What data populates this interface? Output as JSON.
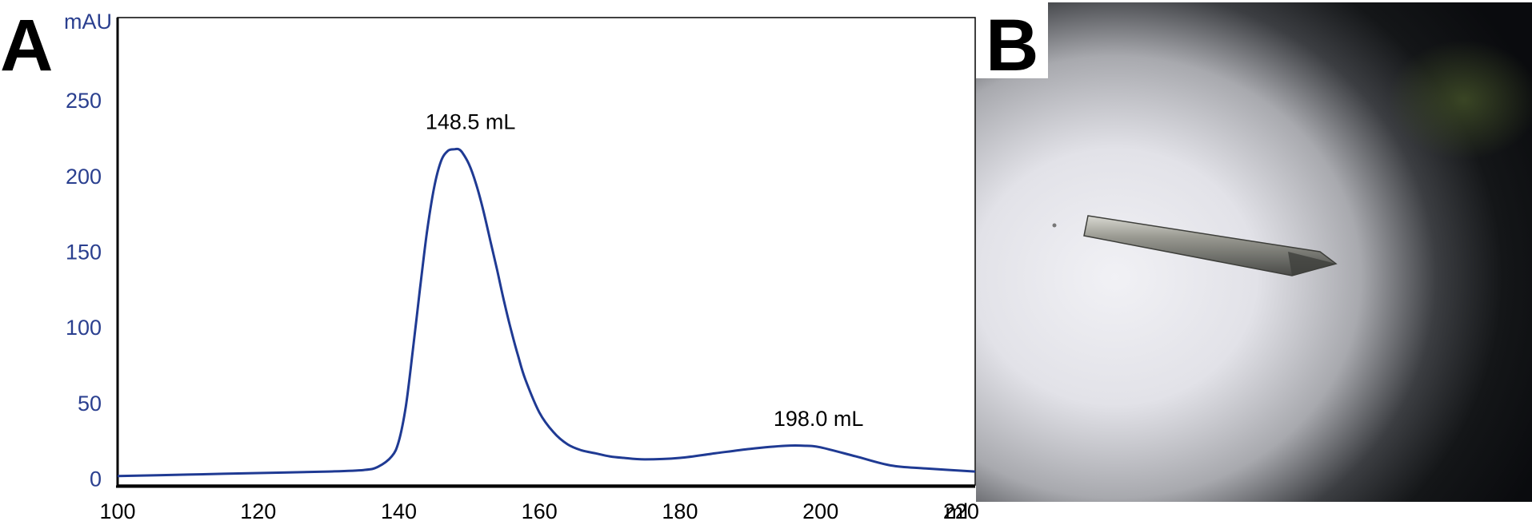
{
  "panels": {
    "a_label": "A",
    "b_label": "B"
  },
  "chart_data": {
    "type": "line",
    "title": "",
    "xlabel": "",
    "ylabel": "",
    "y_unit": "mAU",
    "x_unit": "ml",
    "xlim": [
      100,
      222
    ],
    "ylim": [
      -5,
      305
    ],
    "x_ticks": [
      100,
      120,
      140,
      160,
      180,
      200,
      220
    ],
    "y_ticks": [
      0,
      50,
      100,
      150,
      200,
      250
    ],
    "grid": false,
    "series": [
      {
        "x": [
          100,
          110,
          120,
          130,
          135,
          137,
          139,
          140,
          141,
          142,
          143,
          144,
          145,
          146,
          147,
          148,
          148.5,
          149,
          150,
          151,
          152,
          153,
          154,
          155,
          156,
          157,
          158,
          160,
          162,
          164,
          166,
          168,
          170,
          172,
          175,
          180,
          185,
          190,
          195,
          198,
          200,
          205,
          210,
          215,
          222
        ],
        "y": [
          2,
          3,
          4,
          5,
          6,
          8,
          15,
          25,
          48,
          85,
          125,
          163,
          192,
          210,
          217,
          218,
          218,
          216,
          208,
          195,
          178,
          158,
          138,
          117,
          98,
          81,
          66,
          44,
          31,
          23,
          19,
          17,
          15,
          14,
          13,
          14,
          17,
          20,
          22,
          22,
          21,
          15,
          9,
          7,
          5
        ],
        "color": "#1f3a93"
      }
    ],
    "annotations": [
      {
        "text": "148.5 mL",
        "x": 148.5,
        "y": 218
      },
      {
        "text": "198.0 mL",
        "x": 198.0,
        "y": 22
      }
    ]
  }
}
